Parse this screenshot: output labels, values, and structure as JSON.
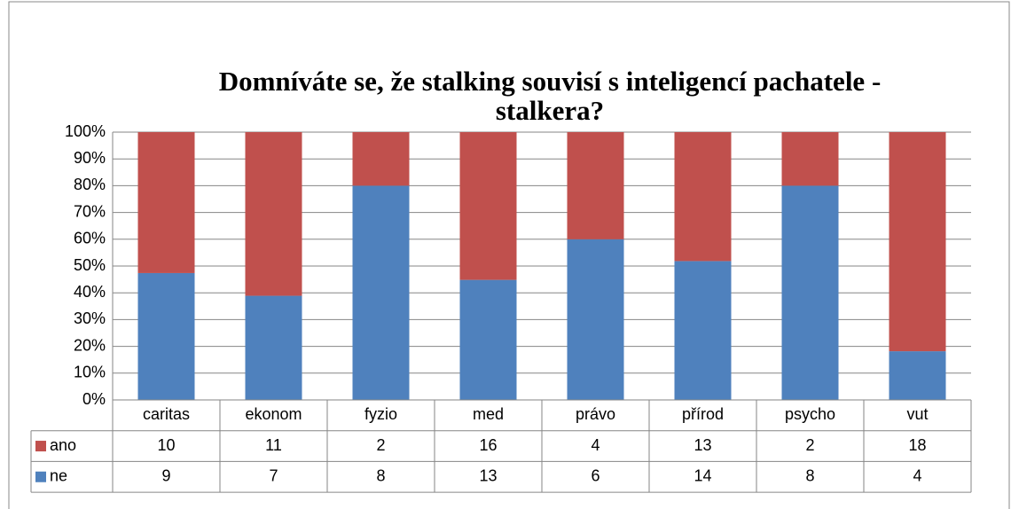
{
  "chart_data": {
    "type": "bar",
    "stacked_percent": true,
    "title": [
      "Domníváte se, že stalking souvisí s inteligencí pachatele -",
      "stalkera?"
    ],
    "categories": [
      "caritas",
      "ekonom",
      "fyzio",
      "med",
      "právo",
      "přírod",
      "psycho",
      "vut"
    ],
    "series": [
      {
        "name": "ano",
        "color": "#c0504d",
        "values": [
          10,
          11,
          2,
          16,
          4,
          13,
          2,
          18
        ]
      },
      {
        "name": "ne",
        "color": "#4f81bd",
        "values": [
          9,
          7,
          8,
          13,
          6,
          14,
          8,
          4
        ]
      }
    ],
    "ylim": [
      0,
      100
    ],
    "yticks": [
      {
        "value": 0,
        "label": "0%"
      },
      {
        "value": 10,
        "label": "10%"
      },
      {
        "value": 20,
        "label": "20%"
      },
      {
        "value": 30,
        "label": "30%"
      },
      {
        "value": 40,
        "label": "40%"
      },
      {
        "value": 50,
        "label": "50%"
      },
      {
        "value": 60,
        "label": "60%"
      },
      {
        "value": 70,
        "label": "70%"
      },
      {
        "value": 80,
        "label": "80%"
      },
      {
        "value": 90,
        "label": "90%"
      },
      {
        "value": 100,
        "label": "100%"
      }
    ],
    "grid": true
  }
}
